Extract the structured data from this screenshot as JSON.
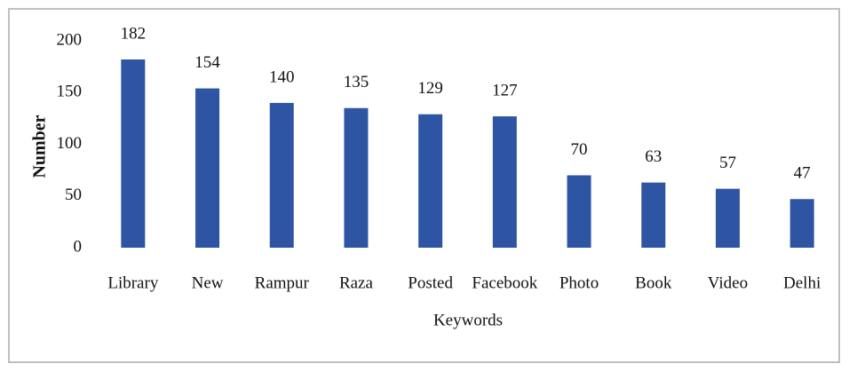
{
  "chart_data": {
    "type": "bar",
    "categories": [
      "Library",
      "New",
      "Rampur",
      "Raza",
      "Posted",
      "Facebook",
      "Photo",
      "Book",
      "Video",
      "Delhi"
    ],
    "values": [
      182,
      154,
      140,
      135,
      129,
      127,
      70,
      63,
      57,
      47
    ],
    "color": "#2e55a3",
    "xlabel": "Keywords",
    "ylabel": "Number",
    "ylim": [
      0,
      200
    ],
    "yticks": [
      0,
      50,
      100,
      150,
      200
    ],
    "grid": false
  }
}
